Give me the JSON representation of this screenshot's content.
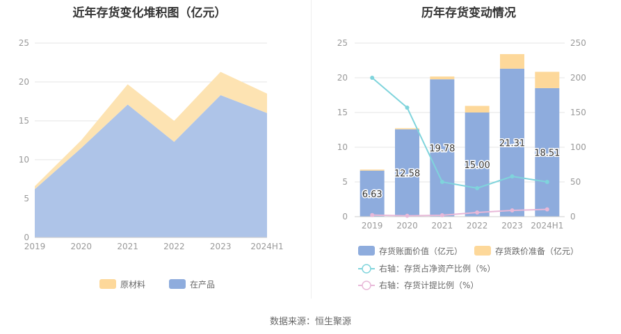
{
  "source_text": "数据来源：恒生聚源",
  "chart_data": [
    {
      "type": "area",
      "title": "近年存货变化堆积图（亿元）",
      "stacked": true,
      "categories": [
        "2019",
        "2020",
        "2021",
        "2022",
        "2023",
        "2024H1"
      ],
      "yticks": [
        "0",
        "5",
        "10",
        "15",
        "20",
        "25"
      ],
      "ylim": [
        0,
        25
      ],
      "series": [
        {
          "name": "在产品",
          "color": "#aec4e8",
          "values": [
            6.2,
            11.5,
            17.1,
            12.3,
            18.3,
            16.0
          ]
        },
        {
          "name": "原材料",
          "color": "#fde3b2",
          "values": [
            0.4,
            1.0,
            2.6,
            2.7,
            3.0,
            2.5
          ]
        }
      ],
      "legend": {
        "position": "bottom",
        "items": [
          {
            "name": "原材料",
            "color": "#fdd89a"
          },
          {
            "name": "在产品",
            "color": "#8eacdd"
          }
        ]
      }
    },
    {
      "type": "bar",
      "title": "历年存货变动情况",
      "stacked": true,
      "categories": [
        "2019",
        "2020",
        "2021",
        "2022",
        "2023",
        "2024H1"
      ],
      "yticks_left": [
        "0",
        "5",
        "10",
        "15",
        "20",
        "25"
      ],
      "yticks_right": [
        "0",
        "50",
        "100",
        "150",
        "200",
        "250"
      ],
      "ylim_left": [
        0,
        25
      ],
      "ylim_right": [
        0,
        250
      ],
      "series": [
        {
          "name": "存货账面价值（亿元）",
          "color": "#8eacdd",
          "axis": "left",
          "values": [
            6.63,
            12.58,
            19.78,
            15.0,
            21.31,
            18.51
          ],
          "labels": [
            "6.63",
            "12.58",
            "19.78",
            "15.00",
            "21.31",
            "18.51"
          ]
        },
        {
          "name": "存货跌价准备（亿元）",
          "color": "#fdd89a",
          "axis": "left",
          "values": [
            0.15,
            0.15,
            0.4,
            0.95,
            2.1,
            2.35
          ]
        },
        {
          "name": "右轴：存货占净资产比例（%）",
          "type": "line",
          "color": "#7fd4dc",
          "axis": "right",
          "values": [
            200,
            157,
            50,
            41,
            58,
            50
          ]
        },
        {
          "name": "右轴：存货计提比例（%）",
          "type": "line",
          "color": "#e8b8d8",
          "axis": "right",
          "values": [
            2.2,
            1.2,
            2.0,
            6.0,
            9.0,
            10.5
          ]
        }
      ],
      "legend": {
        "position": "bottom"
      }
    }
  ]
}
